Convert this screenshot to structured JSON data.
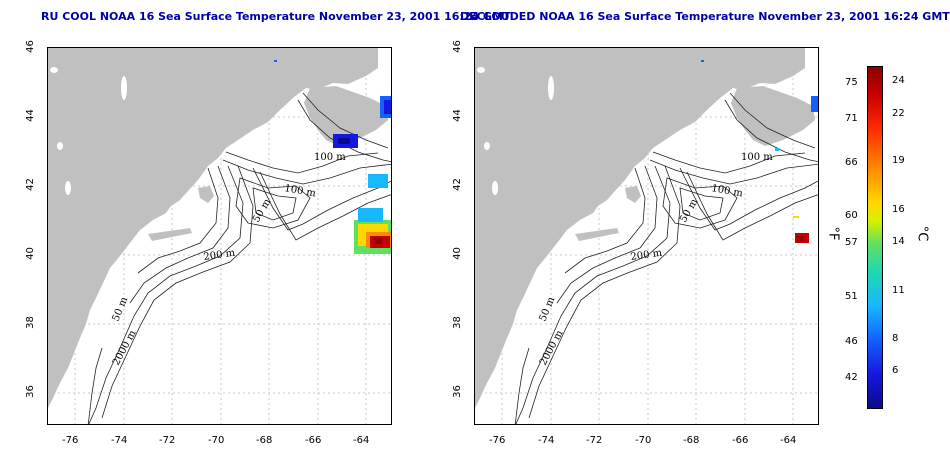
{
  "titles": {
    "left": "RU COOL NOAA 16 Sea Surface Temperature November 23, 2001 16:24 GMT",
    "right": "DECLOUDED NOAA 16 Sea Surface Temperature November 23, 2001 16:24 GMT"
  },
  "axes": {
    "lon_ticks": [
      "-76",
      "-74",
      "-72",
      "-70",
      "-68",
      "-66",
      "-64"
    ],
    "lat_ticks": [
      "46",
      "44",
      "42",
      "40",
      "38",
      "36"
    ]
  },
  "contour_labels": {
    "c100_north": "100 m",
    "c100_mid": "100 m",
    "c50_mid": "50 m",
    "c200": "200 m",
    "c50_south": "50 m",
    "c2000": "2000 m"
  },
  "colorbar": {
    "fahrenheit_ticks": [
      "75",
      "71",
      "66",
      "60",
      "57",
      "51",
      "46",
      "42"
    ],
    "celsius_ticks": [
      "24",
      "22",
      "19",
      "16",
      "14",
      "11",
      "8",
      "6"
    ],
    "fahrenheit_unit": "°F",
    "celsius_unit": "°C",
    "colors": {
      "land": "#c0c0c0",
      "water": "#ffffff",
      "warm": "#c60000",
      "cold": "#1418e0"
    }
  }
}
